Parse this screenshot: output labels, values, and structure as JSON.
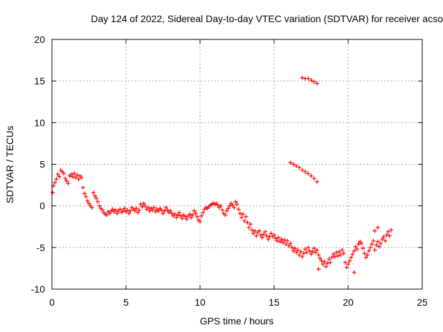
{
  "chart_data": {
    "type": "scatter",
    "title": "Day 124 of 2022, Sidereal Day-to-day VTEC variation (SDTVAR) for receiver acso",
    "xlabel": "GPS time / hours",
    "ylabel": "SDTVAR / TECUs",
    "xlim": [
      0,
      25
    ],
    "ylim": [
      -10,
      20
    ],
    "xticks": [
      0,
      5,
      10,
      15,
      20,
      25
    ],
    "yticks": [
      -10,
      -5,
      0,
      5,
      10,
      15,
      20
    ],
    "xtick_labels": [
      "0",
      "5",
      "10",
      "15",
      "20",
      "25"
    ],
    "ytick_labels": [
      "-10",
      "-5",
      "0",
      "5",
      "10",
      "15",
      "20"
    ],
    "grid": true,
    "marker_color": "#ff0000",
    "marker": "plus",
    "series": [
      {
        "name": "main-track",
        "points": [
          [
            0.05,
            1.6
          ],
          [
            0.1,
            2.4
          ],
          [
            0.2,
            2.8
          ],
          [
            0.3,
            3.2
          ],
          [
            0.4,
            3.8
          ],
          [
            0.5,
            3.5
          ],
          [
            0.6,
            4.3
          ],
          [
            0.7,
            4.1
          ],
          [
            0.8,
            3.9
          ],
          [
            0.9,
            3.3
          ],
          [
            1.0,
            3.0
          ],
          [
            1.1,
            2.7
          ],
          [
            1.2,
            3.6
          ],
          [
            1.3,
            3.8
          ],
          [
            1.4,
            3.5
          ],
          [
            1.5,
            3.9
          ],
          [
            1.6,
            3.4
          ],
          [
            1.7,
            3.7
          ],
          [
            1.8,
            3.2
          ],
          [
            1.9,
            3.6
          ],
          [
            2.0,
            3.4
          ],
          [
            2.1,
            2.2
          ],
          [
            2.2,
            1.5
          ],
          [
            2.3,
            1.1
          ],
          [
            2.4,
            0.6
          ],
          [
            2.5,
            0.3
          ],
          [
            2.6,
            0.0
          ],
          [
            2.7,
            -0.2
          ],
          [
            2.8,
            1.6
          ],
          [
            2.9,
            1.2
          ],
          [
            3.0,
            0.9
          ],
          [
            3.1,
            0.5
          ],
          [
            3.2,
            0.0
          ],
          [
            3.3,
            -0.3
          ],
          [
            3.4,
            -0.5
          ],
          [
            3.5,
            -0.8
          ],
          [
            3.6,
            -1.0
          ],
          [
            3.7,
            -1.1
          ],
          [
            3.8,
            -0.7
          ],
          [
            3.9,
            -0.9
          ],
          [
            4.0,
            -0.6
          ],
          [
            4.1,
            -0.4
          ],
          [
            4.2,
            -0.7
          ],
          [
            4.3,
            -0.5
          ],
          [
            4.4,
            -0.9
          ],
          [
            4.5,
            -0.6
          ],
          [
            4.6,
            -0.4
          ],
          [
            4.7,
            -0.8
          ],
          [
            4.8,
            -0.6
          ],
          [
            4.9,
            -0.3
          ],
          [
            5.0,
            -0.7
          ],
          [
            5.1,
            -0.5
          ],
          [
            5.2,
            -0.9
          ],
          [
            5.3,
            -0.6
          ],
          [
            5.4,
            -0.2
          ],
          [
            5.5,
            -0.4
          ],
          [
            5.6,
            -0.6
          ],
          [
            5.7,
            -0.3
          ],
          [
            5.8,
            -0.8
          ],
          [
            5.9,
            -0.5
          ],
          [
            6.0,
            0.2
          ],
          [
            6.1,
            -0.1
          ],
          [
            6.2,
            0.3
          ],
          [
            6.3,
            0.0
          ],
          [
            6.4,
            -0.4
          ],
          [
            6.5,
            -0.2
          ],
          [
            6.6,
            -0.6
          ],
          [
            6.7,
            -0.3
          ],
          [
            6.8,
            -0.5
          ],
          [
            6.9,
            -0.2
          ],
          [
            7.0,
            -0.7
          ],
          [
            7.1,
            -0.4
          ],
          [
            7.2,
            -0.6
          ],
          [
            7.3,
            -0.3
          ],
          [
            7.4,
            -0.5
          ],
          [
            7.5,
            -0.9
          ],
          [
            7.6,
            -0.6
          ],
          [
            7.7,
            -0.2
          ],
          [
            7.8,
            -0.5
          ],
          [
            7.9,
            -0.8
          ],
          [
            8.0,
            -0.6
          ],
          [
            8.1,
            -0.9
          ],
          [
            8.2,
            -1.2
          ],
          [
            8.3,
            -1.0
          ],
          [
            8.4,
            -1.4
          ],
          [
            8.5,
            -1.1
          ],
          [
            8.6,
            -0.8
          ],
          [
            8.7,
            -1.2
          ],
          [
            8.8,
            -1.5
          ],
          [
            8.9,
            -1.1
          ],
          [
            9.0,
            -1.3
          ],
          [
            9.1,
            -1.6
          ],
          [
            9.2,
            -1.2
          ],
          [
            9.3,
            -1.0
          ],
          [
            9.4,
            -1.4
          ],
          [
            9.5,
            -1.1
          ],
          [
            9.6,
            -0.6
          ],
          [
            9.7,
            -0.9
          ],
          [
            9.8,
            -1.3
          ],
          [
            9.9,
            -1.7
          ],
          [
            10.0,
            -1.9
          ],
          [
            10.1,
            -1.2
          ],
          [
            10.2,
            -0.8
          ],
          [
            10.3,
            -0.4
          ],
          [
            10.4,
            -0.2
          ],
          [
            10.5,
            -0.3
          ],
          [
            10.6,
            -0.1
          ],
          [
            10.7,
            0.1
          ],
          [
            10.8,
            0.2
          ],
          [
            10.9,
            0.3
          ],
          [
            11.0,
            0.2
          ],
          [
            11.1,
            0.3
          ],
          [
            11.2,
            0.1
          ],
          [
            11.3,
            -0.2
          ],
          [
            11.4,
            0.0
          ],
          [
            11.5,
            -0.5
          ],
          [
            11.6,
            -0.9
          ],
          [
            11.7,
            -1.1
          ],
          [
            11.8,
            -0.6
          ],
          [
            11.9,
            -0.3
          ],
          [
            12.0,
            0.0
          ],
          [
            12.1,
            0.3
          ],
          [
            12.2,
            0.1
          ],
          [
            12.3,
            -0.2
          ],
          [
            12.4,
            0.5
          ],
          [
            12.5,
            0.2
          ],
          [
            12.6,
            -0.4
          ],
          [
            12.7,
            -0.9
          ],
          [
            12.8,
            -1.4
          ],
          [
            12.9,
            -1.0
          ],
          [
            13.0,
            -1.8
          ],
          [
            13.1,
            -1.3
          ],
          [
            13.2,
            -2.0
          ],
          [
            13.3,
            -2.6
          ],
          [
            13.4,
            -2.2
          ],
          [
            13.5,
            -2.9
          ],
          [
            13.6,
            -3.3
          ],
          [
            13.7,
            -3.0
          ],
          [
            13.8,
            -3.6
          ],
          [
            13.9,
            -3.2
          ],
          [
            14.0,
            -3.0
          ],
          [
            14.1,
            -3.5
          ],
          [
            14.2,
            -3.8
          ],
          [
            14.3,
            -3.4
          ],
          [
            14.4,
            -3.1
          ],
          [
            14.5,
            -3.6
          ],
          [
            14.6,
            -4.0
          ],
          [
            14.7,
            -3.7
          ],
          [
            14.8,
            -3.3
          ],
          [
            14.9,
            -3.7
          ],
          [
            15.0,
            -3.5
          ],
          [
            15.1,
            -3.9
          ],
          [
            15.2,
            -4.2
          ],
          [
            15.3,
            -3.8
          ],
          [
            15.4,
            -4.3
          ],
          [
            15.5,
            -4.0
          ],
          [
            15.6,
            -4.4
          ],
          [
            15.7,
            -4.1
          ],
          [
            15.8,
            -4.6
          ],
          [
            15.9,
            -4.2
          ],
          [
            16.0,
            -4.8
          ],
          [
            16.1,
            -4.5
          ],
          [
            16.2,
            -5.0
          ],
          [
            16.3,
            -5.4
          ],
          [
            16.4,
            -5.1
          ],
          [
            16.5,
            -5.6
          ],
          [
            16.6,
            -5.3
          ],
          [
            16.7,
            -5.9
          ],
          [
            16.8,
            -5.5
          ],
          [
            16.9,
            -6.1
          ],
          [
            17.0,
            -5.7
          ],
          [
            17.1,
            -5.2
          ],
          [
            17.2,
            -5.6
          ],
          [
            17.3,
            -5.0
          ],
          [
            17.4,
            -5.4
          ],
          [
            17.5,
            -5.8
          ],
          [
            17.6,
            -5.5
          ],
          [
            17.7,
            -5.1
          ],
          [
            17.8,
            -5.6
          ],
          [
            17.9,
            -5.3
          ],
          [
            18.0,
            -5.9
          ],
          [
            18.1,
            -6.3
          ],
          [
            18.2,
            -6.6
          ],
          [
            18.3,
            -7.0
          ],
          [
            18.4,
            -6.7
          ],
          [
            18.5,
            -7.3
          ],
          [
            18.6,
            -6.9
          ],
          [
            18.7,
            -6.4
          ],
          [
            18.8,
            -6.8
          ],
          [
            18.9,
            -6.2
          ],
          [
            19.0,
            -5.8
          ],
          [
            19.1,
            -6.1
          ],
          [
            19.2,
            -5.6
          ],
          [
            19.3,
            -6.0
          ],
          [
            19.4,
            -5.5
          ],
          [
            19.5,
            -5.9
          ],
          [
            19.6,
            -5.3
          ],
          [
            19.7,
            -5.7
          ],
          [
            19.8,
            -6.8
          ],
          [
            19.9,
            -7.4
          ],
          [
            20.0,
            -7.0
          ],
          [
            20.1,
            -6.6
          ],
          [
            20.2,
            -6.2
          ],
          [
            20.3,
            -5.8
          ],
          [
            20.4,
            -5.4
          ],
          [
            20.5,
            -4.9
          ],
          [
            20.6,
            -5.2
          ],
          [
            20.7,
            -4.6
          ],
          [
            20.8,
            -4.3
          ],
          [
            20.9,
            -4.5
          ],
          [
            21.0,
            -5.1
          ],
          [
            21.1,
            -5.7
          ],
          [
            21.2,
            -6.2
          ],
          [
            21.3,
            -5.9
          ],
          [
            21.4,
            -5.4
          ],
          [
            21.5,
            -5.0
          ],
          [
            21.6,
            -4.6
          ],
          [
            21.7,
            -4.2
          ],
          [
            21.8,
            -5.3
          ],
          [
            21.9,
            -4.7
          ],
          [
            22.0,
            -4.3
          ],
          [
            22.1,
            -4.9
          ],
          [
            22.2,
            -4.5
          ],
          [
            22.3,
            -4.0
          ],
          [
            22.4,
            -3.7
          ],
          [
            22.5,
            -4.2
          ],
          [
            22.6,
            -3.5
          ],
          [
            22.7,
            -3.1
          ],
          [
            22.8,
            -3.6
          ],
          [
            22.9,
            -2.9
          ]
        ]
      },
      {
        "name": "upper-track-a",
        "points": [
          [
            16.1,
            5.2
          ],
          [
            16.3,
            5.0
          ],
          [
            16.5,
            4.8
          ],
          [
            16.7,
            4.6
          ],
          [
            16.9,
            4.3
          ],
          [
            17.1,
            4.1
          ],
          [
            17.3,
            3.9
          ],
          [
            17.5,
            3.6
          ],
          [
            17.7,
            3.3
          ],
          [
            17.9,
            2.9
          ]
        ]
      },
      {
        "name": "upper-track-b",
        "points": [
          [
            16.9,
            15.4
          ],
          [
            17.1,
            15.3
          ],
          [
            17.3,
            15.3
          ],
          [
            17.5,
            15.1
          ],
          [
            17.7,
            14.9
          ],
          [
            17.9,
            14.7
          ]
        ]
      },
      {
        "name": "outliers",
        "points": [
          [
            20.4,
            -8.0
          ],
          [
            21.8,
            -3.0
          ],
          [
            22.0,
            -2.6
          ],
          [
            18.0,
            -7.6
          ]
        ]
      }
    ]
  }
}
